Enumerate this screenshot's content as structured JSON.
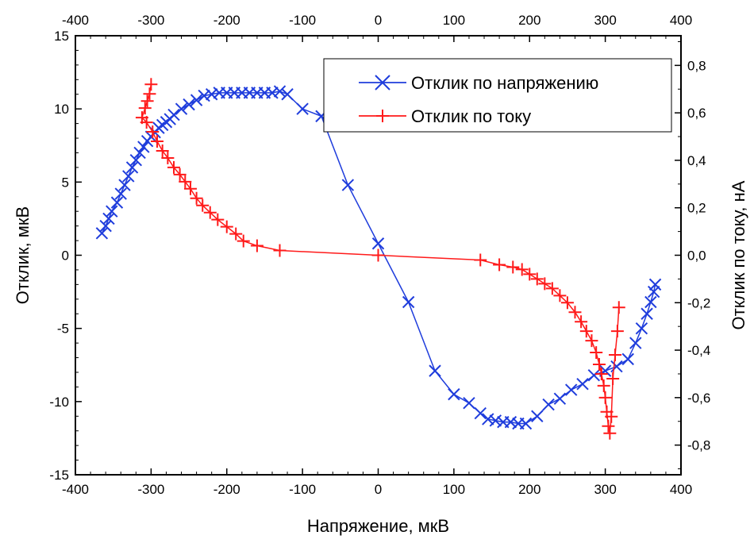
{
  "chart_data": {
    "type": "scatter",
    "xlabel": "Напряжение, мкВ",
    "ylabel": "Отклик, мкВ",
    "y2label": "Отклик по току, нА",
    "xlim": [
      -400,
      400
    ],
    "ylim": [
      -15,
      15
    ],
    "y2lim": [
      -0.925,
      0.925
    ],
    "x_ticks": [
      "-400",
      "-300",
      "-200",
      "-100",
      "0",
      "100",
      "200",
      "300",
      "400"
    ],
    "x_tick_values": [
      -400,
      -300,
      -200,
      -100,
      0,
      100,
      200,
      300,
      400
    ],
    "y_ticks": [
      "-15",
      "-10",
      "-5",
      "0",
      "5",
      "10",
      "15"
    ],
    "y_tick_values": [
      -15,
      -10,
      -5,
      0,
      5,
      10,
      15
    ],
    "y2_ticks": [
      "-0,8",
      "-0,6",
      "-0,4",
      "-0,2",
      "0,0",
      "0,2",
      "0,4",
      "0,6",
      "0,8"
    ],
    "y2_tick_values": [
      -0.8,
      -0.6,
      -0.4,
      -0.2,
      0.0,
      0.2,
      0.4,
      0.6,
      0.8
    ],
    "top_x_ticks": [
      "-400",
      "-300",
      "-200",
      "-100",
      "0",
      "100",
      "200",
      "300",
      "400"
    ],
    "legend": {
      "position": "top-right"
    },
    "series": [
      {
        "name": "Отклик по напряжению",
        "axis": "left",
        "color": "#1f3ddc",
        "marker": "x",
        "x": [
          -365,
          -360,
          -356,
          -352,
          -345,
          -340,
          -335,
          -330,
          -325,
          -320,
          -315,
          -310,
          -305,
          -300,
          -295,
          -290,
          -285,
          -280,
          -275,
          -270,
          -260,
          -250,
          -240,
          -230,
          -220,
          -210,
          -200,
          -190,
          -180,
          -170,
          -160,
          -150,
          -140,
          -130,
          -120,
          -100,
          -75,
          -40,
          0,
          40,
          75,
          100,
          120,
          135,
          145,
          155,
          165,
          175,
          185,
          195,
          210,
          225,
          240,
          255,
          270,
          285,
          300,
          315,
          330,
          340,
          348,
          355,
          360,
          364,
          366
        ],
        "y": [
          1.5,
          2.0,
          2.5,
          3.0,
          3.6,
          4.2,
          4.8,
          5.4,
          6.0,
          6.5,
          7.0,
          7.4,
          7.8,
          8.1,
          8.4,
          8.7,
          8.9,
          9.1,
          9.3,
          9.6,
          10.0,
          10.3,
          10.6,
          10.9,
          11.0,
          11.1,
          11.1,
          11.1,
          11.1,
          11.1,
          11.1,
          11.1,
          11.1,
          11.2,
          11.0,
          10.0,
          9.5,
          4.8,
          0.8,
          -3.2,
          -7.9,
          -9.5,
          -10.1,
          -10.8,
          -11.2,
          -11.3,
          -11.4,
          -11.4,
          -11.5,
          -11.5,
          -11.0,
          -10.2,
          -9.8,
          -9.2,
          -8.8,
          -8.2,
          -7.9,
          -7.6,
          -7.1,
          -6.0,
          -5.0,
          -4.0,
          -3.2,
          -2.5,
          -2.0
        ]
      },
      {
        "name": "Отклик по току",
        "axis": "right",
        "color": "#ff1a1a",
        "marker": "+",
        "x": [
          -300,
          -302,
          -305,
          -308,
          -312,
          -306,
          -298,
          -292,
          -285,
          -278,
          -270,
          -262,
          -255,
          -248,
          -240,
          -232,
          -222,
          -212,
          -200,
          -188,
          -178,
          -160,
          -130,
          0,
          135,
          160,
          178,
          190,
          200,
          210,
          220,
          230,
          240,
          250,
          260,
          268,
          275,
          282,
          288,
          292,
          295,
          298,
          300,
          302,
          304,
          306,
          308,
          310,
          313,
          316,
          318
        ],
        "y": [
          0.72,
          0.68,
          0.65,
          0.62,
          0.58,
          0.56,
          0.52,
          0.48,
          0.44,
          0.41,
          0.37,
          0.34,
          0.31,
          0.28,
          0.24,
          0.21,
          0.18,
          0.15,
          0.12,
          0.09,
          0.06,
          0.04,
          0.02,
          0.0,
          -0.02,
          -0.04,
          -0.05,
          -0.06,
          -0.08,
          -0.1,
          -0.12,
          -0.14,
          -0.17,
          -0.2,
          -0.24,
          -0.28,
          -0.32,
          -0.36,
          -0.41,
          -0.46,
          -0.5,
          -0.55,
          -0.6,
          -0.66,
          -0.72,
          -0.75,
          -0.68,
          -0.52,
          -0.42,
          -0.32,
          -0.22
        ]
      }
    ]
  }
}
